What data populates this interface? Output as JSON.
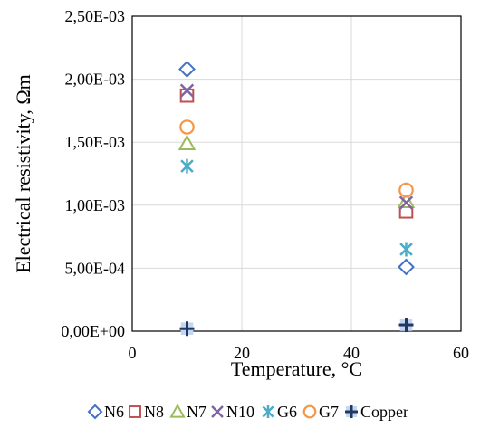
{
  "chart_data": {
    "type": "scatter",
    "xlabel": "Temperature, °C",
    "ylabel": "Electrical resistivity, Ωm",
    "xlim": [
      0,
      60
    ],
    "ylim": [
      0,
      0.0025
    ],
    "x_ticks": [
      {
        "value": 0,
        "label": "0"
      },
      {
        "value": 20,
        "label": "20"
      },
      {
        "value": 40,
        "label": "40"
      },
      {
        "value": 60,
        "label": "60"
      }
    ],
    "y_ticks": [
      {
        "value": 0,
        "label": "0,00E+00"
      },
      {
        "value": 0.0005,
        "label": "5,00E-04"
      },
      {
        "value": 0.001,
        "label": "1,00E-03"
      },
      {
        "value": 0.0015,
        "label": "1,50E-03"
      },
      {
        "value": 0.002,
        "label": "2,00E-03"
      },
      {
        "value": 0.0025,
        "label": "2,50E-03"
      }
    ],
    "grid": true,
    "legend_position": "bottom",
    "series": [
      {
        "name": "N6",
        "marker": "diamond",
        "color": "#4472C4",
        "points": [
          [
            10,
            0.00208
          ],
          [
            50,
            0.00051
          ]
        ]
      },
      {
        "name": "N8",
        "marker": "square",
        "color": "#C0504D",
        "points": [
          [
            10,
            0.00187
          ],
          [
            50,
            0.00095
          ]
        ]
      },
      {
        "name": "N7",
        "marker": "triangle",
        "color": "#9BBB59",
        "points": [
          [
            10,
            0.00149
          ],
          [
            50,
            0.00103
          ]
        ]
      },
      {
        "name": "N10",
        "marker": "x",
        "color": "#8064A2",
        "points": [
          [
            10,
            0.00191
          ],
          [
            50,
            0.00102
          ]
        ]
      },
      {
        "name": "G6",
        "marker": "star",
        "color": "#4BACC6",
        "points": [
          [
            10,
            0.00131
          ],
          [
            50,
            0.00065
          ]
        ]
      },
      {
        "name": "G7",
        "marker": "circle",
        "color": "#F79646",
        "points": [
          [
            10,
            0.00162
          ],
          [
            50,
            0.00112
          ]
        ]
      },
      {
        "name": "Copper",
        "marker": "plus",
        "color": "#1F3864",
        "points": [
          [
            10,
            2e-05
          ],
          [
            50,
            5e-05
          ]
        ]
      }
    ]
  }
}
